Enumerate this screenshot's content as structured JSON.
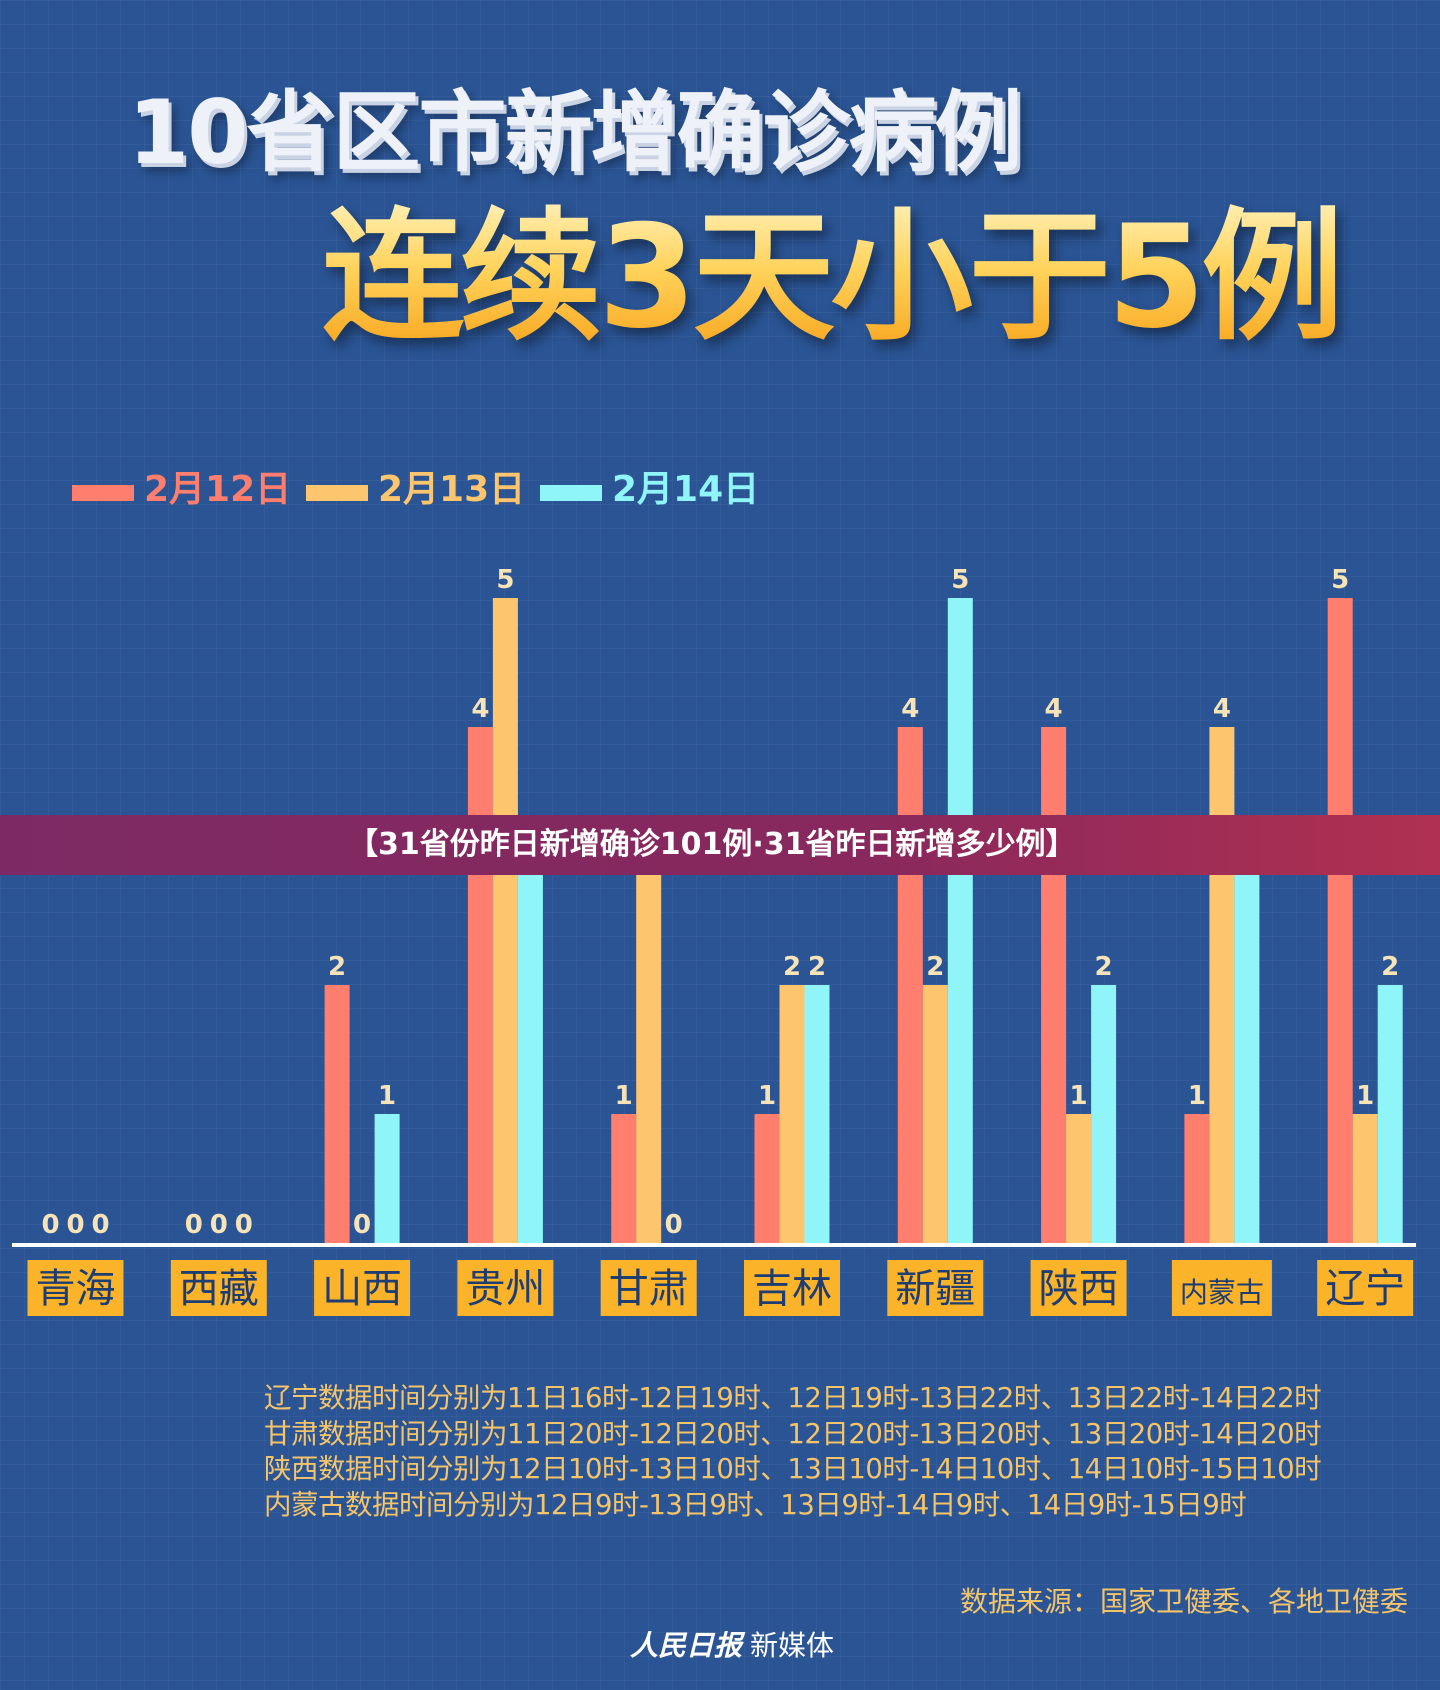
{
  "header": {
    "title_line1": "10省区市新增确诊病例",
    "title_line2": "连续3天小于5例"
  },
  "colors": {
    "feb12": "#ff7e6e",
    "feb13": "#fdc56d",
    "feb14": "#8ff5f8",
    "category_box": "#fbb32a",
    "category_text": "#1e3d73",
    "axis_line": "#ffffff",
    "value_label": "#f6e3b8"
  },
  "chart_data": {
    "type": "bar",
    "categories": [
      "青海",
      "西藏",
      "山西",
      "贵州",
      "甘肃",
      "吉林",
      "新疆",
      "陕西",
      "内蒙古",
      "辽宁"
    ],
    "series": [
      {
        "name": "2月12日",
        "values": [
          0,
          0,
          2,
          4,
          1,
          1,
          4,
          4,
          1,
          5
        ]
      },
      {
        "name": "2月13日",
        "values": [
          0,
          0,
          0,
          5,
          3,
          2,
          2,
          1,
          4,
          1
        ]
      },
      {
        "name": "2月14日",
        "values": [
          0,
          0,
          1,
          3,
          0,
          2,
          5,
          2,
          3,
          2
        ]
      }
    ],
    "ylim": [
      0,
      5
    ],
    "grid": false,
    "legend": "top-left"
  },
  "overlay": {
    "caption": "【31省份昨日新增确诊101例·31省昨日新增多少例】"
  },
  "notes": [
    "辽宁数据时间分别为11日16时-12日19时、12日19时-13日22时、13日22时-14日22时",
    "甘肃数据时间分别为11日20时-12日20时、12日20时-13日20时、13日20时-14日20时",
    "陕西数据时间分别为12日10时-13日10时、13日10时-14日10时、14日10时-15日10时",
    "内蒙古数据时间分别为12日9时-13日9时、13日9时-14日9时、14日9时-15日9时"
  ],
  "footer": {
    "source": "数据来源：国家卫健委、各地卫健委",
    "brand_mark": "人民日报",
    "brand_text": "新媒体"
  }
}
